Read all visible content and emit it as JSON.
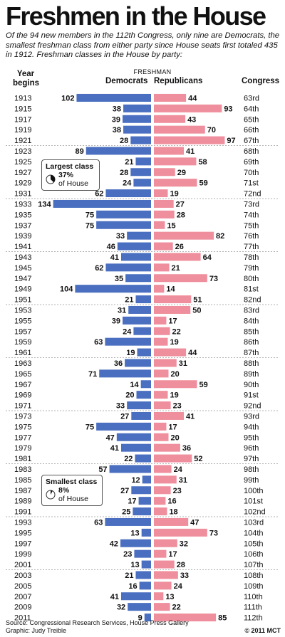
{
  "title": "Freshmen in the House",
  "subtitle": "Of the 94 new members in the 112th Congress, only nine are Democrats, the smallest freshman class from either party since House seats first totaled 435 in 1912. Freshman classes in the House by party:",
  "headers": {
    "year_line1": "Year",
    "year_line2": "begins",
    "freshman": "FRESHMAN",
    "democrats": "Democrats",
    "republicans": "Republicans",
    "congress": "Congress"
  },
  "callouts": {
    "largest": {
      "title": "Largest class",
      "pct": "37%",
      "suffix": "of House",
      "fraction": 0.37
    },
    "smallest": {
      "title": "Smallest class",
      "pct": "8%",
      "suffix": "of House",
      "fraction": 0.08
    }
  },
  "source": "Source: Congressional Research Services, House Press Gallery",
  "graphic": "Graphic: Judy Treible",
  "credit": "© 2011 MCT",
  "colors": {
    "democrats": "#4a6fc0",
    "republicans": "#ef8e9c"
  },
  "chart_data": {
    "type": "bar",
    "orientation": "horizontal-diverging",
    "years": [
      "1913",
      "1915",
      "1917",
      "1919",
      "1921",
      "1923",
      "1925",
      "1927",
      "1929",
      "1931",
      "1933",
      "1935",
      "1937",
      "1939",
      "1941",
      "1943",
      "1945",
      "1947",
      "1949",
      "1951",
      "1953",
      "1955",
      "1957",
      "1959",
      "1961",
      "1963",
      "1965",
      "1967",
      "1969",
      "1971",
      "1973",
      "1975",
      "1977",
      "1979",
      "1981",
      "1983",
      "1985",
      "1987",
      "1989",
      "1991",
      "1993",
      "1995",
      "1997",
      "1999",
      "2001",
      "2003",
      "2005",
      "2007",
      "2009",
      "2011"
    ],
    "congress": [
      "63rd",
      "64th",
      "65th",
      "66th",
      "67th",
      "68th",
      "69th",
      "70th",
      "71st",
      "72nd",
      "73rd",
      "74th",
      "75th",
      "76th",
      "77th",
      "78th",
      "79th",
      "80th",
      "81st",
      "82nd",
      "83rd",
      "84th",
      "85th",
      "86th",
      "87th",
      "88th",
      "89th",
      "90th",
      "91st",
      "92nd",
      "93rd",
      "94th",
      "95th",
      "96th",
      "97th",
      "98th",
      "99th",
      "100th",
      "101st",
      "102nd",
      "103rd",
      "104th",
      "105th",
      "106th",
      "107th",
      "108th",
      "109th",
      "110th",
      "111th",
      "112th"
    ],
    "series": [
      {
        "name": "Democrats",
        "values": [
          102,
          38,
          39,
          38,
          28,
          89,
          21,
          28,
          24,
          62,
          134,
          75,
          75,
          33,
          46,
          41,
          62,
          35,
          104,
          21,
          31,
          39,
          24,
          63,
          19,
          36,
          71,
          14,
          20,
          33,
          27,
          75,
          47,
          41,
          22,
          57,
          12,
          27,
          17,
          25,
          63,
          13,
          42,
          23,
          13,
          21,
          16,
          41,
          32,
          9
        ]
      },
      {
        "name": "Republicans",
        "values": [
          44,
          93,
          43,
          70,
          97,
          41,
          58,
          29,
          59,
          19,
          27,
          28,
          15,
          82,
          26,
          64,
          21,
          73,
          14,
          51,
          50,
          17,
          22,
          19,
          44,
          31,
          20,
          59,
          19,
          23,
          41,
          17,
          20,
          36,
          52,
          24,
          31,
          23,
          16,
          18,
          47,
          73,
          32,
          17,
          28,
          33,
          24,
          13,
          22,
          85
        ]
      }
    ]
  }
}
